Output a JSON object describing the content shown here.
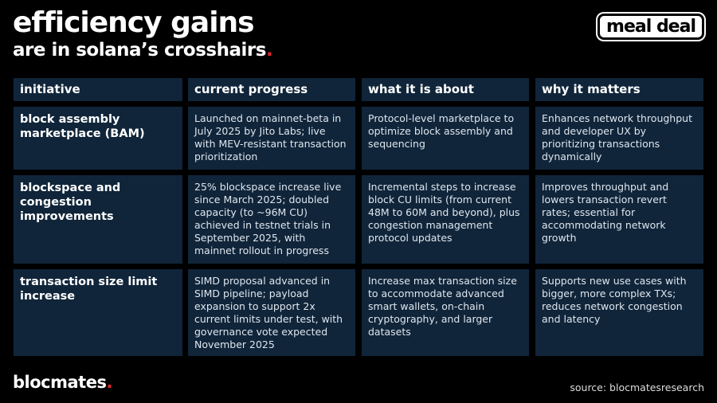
{
  "header": {
    "title": "efficiency gains",
    "subtitle": "are in solana’s crosshairs",
    "subtitle_dot": ".",
    "logo": "meal deal"
  },
  "table": {
    "columns": [
      "initiative",
      "current progress",
      "what it is about",
      "why it matters"
    ],
    "rows": [
      [
        "block assembly marketplace (BAM)",
        "Launched on mainnet-beta in July 2025 by Jito Labs; live with MEV-resistant transaction prioritization",
        "Protocol-level marketplace to optimize block assembly and sequencing",
        "Enhances network throughput and developer UX by prioritizing transactions dynamically"
      ],
      [
        "blockspace and congestion improvements",
        "25% blockspace increase live since March 2025; doubled capacity (to ~96M CU) achieved in testnet trials in September 2025, with mainnet rollout in progress",
        "Incremental steps to increase block CU limits (from current 48M to 60M and beyond), plus congestion management protocol updates",
        "Improves throughput and lowers transaction revert rates; essential for accommodating network growth"
      ],
      [
        "transaction size limit increase",
        "SIMD proposal advanced in SIMD pipeline; payload expansion to support 2x current limits under test, with governance vote expected November 2025",
        "Increase max transaction size to accommodate advanced smart wallets, on-chain cryptography, and larger datasets",
        "Supports new use cases with bigger, more complex TXs; reduces network congestion and latency"
      ]
    ]
  },
  "footer": {
    "brand": "blocmates",
    "brand_dot": ".",
    "source": "source: blocmatesresearch"
  }
}
